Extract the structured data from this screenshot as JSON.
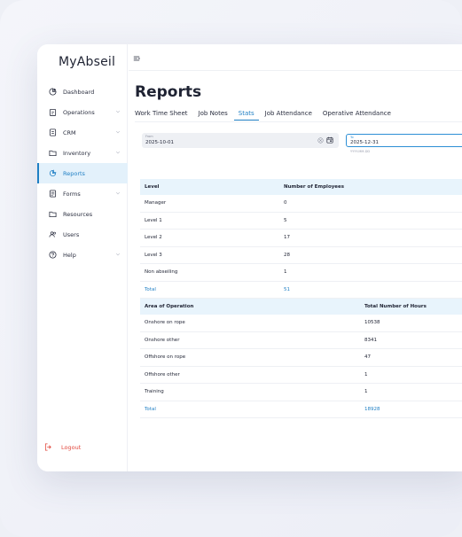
{
  "app": {
    "name": "MyAbseil"
  },
  "sidebar": {
    "items": [
      {
        "label": "Dashboard",
        "icon": "dashboard-icon",
        "has_chevron": false
      },
      {
        "label": "Operations",
        "icon": "clipboard-icon",
        "has_chevron": true
      },
      {
        "label": "CRM",
        "icon": "contacts-icon",
        "has_chevron": true
      },
      {
        "label": "Inventory",
        "icon": "folder-icon",
        "has_chevron": true
      },
      {
        "label": "Reports",
        "icon": "pie-chart-icon",
        "has_chevron": false,
        "active": true
      },
      {
        "label": "Forms",
        "icon": "form-icon",
        "has_chevron": true
      },
      {
        "label": "Resources",
        "icon": "folder-icon",
        "has_chevron": false
      },
      {
        "label": "Users",
        "icon": "users-icon",
        "has_chevron": false
      },
      {
        "label": "Help",
        "icon": "help-icon",
        "has_chevron": true
      }
    ],
    "logout": "Logout"
  },
  "page": {
    "title": "Reports"
  },
  "tabs": [
    "Work Time Sheet",
    "Job Notes",
    "Stats",
    "Job Attendance",
    "Operative Attendance"
  ],
  "active_tab": "Stats",
  "filters": {
    "from": {
      "label": "From",
      "value": "2025-10-01"
    },
    "to": {
      "label": "To",
      "value": "2025-12-31",
      "hint": "YYYY-MM-DD"
    }
  },
  "employees_table": {
    "headers": [
      "Level",
      "Number of Employees"
    ],
    "rows": [
      [
        "Manager",
        "0"
      ],
      [
        "Level 1",
        "5"
      ],
      [
        "Level 2",
        "17"
      ],
      [
        "Level 3",
        "28"
      ],
      [
        "Non abseiling",
        "1"
      ]
    ],
    "total": [
      "Total",
      "51"
    ]
  },
  "hours_table": {
    "headers": [
      "Area of Operation",
      "Total Number of Hours"
    ],
    "rows": [
      [
        "Onshore on rope",
        "10538"
      ],
      [
        "Onshore other",
        "8341"
      ],
      [
        "Offshore on rope",
        "47"
      ],
      [
        "Offshore other",
        "1"
      ],
      [
        "Training",
        "1"
      ]
    ],
    "total": [
      "Total",
      "18928"
    ]
  },
  "colors": {
    "accent": "#1f7fc4",
    "header_bg": "#e8f4fc",
    "logout": "#e2483d"
  }
}
